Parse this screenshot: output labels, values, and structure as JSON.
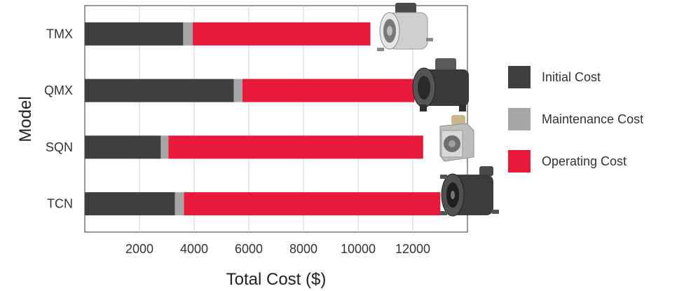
{
  "chart_data": {
    "type": "bar",
    "orientation": "horizontal",
    "stacked": true,
    "categories": [
      "TMX",
      "QMX",
      "SQN",
      "TCN"
    ],
    "series": [
      {
        "name": "Initial Cost",
        "color": "#3f3f3f",
        "values": [
          3600,
          5450,
          2780,
          3300
        ]
      },
      {
        "name": "Maintenance Cost",
        "color": "#a6a6a6",
        "values": [
          350,
          320,
          280,
          330
        ]
      },
      {
        "name": "Operating Cost",
        "color": "#e8193a",
        "values": [
          6500,
          6290,
          9320,
          9380
        ]
      }
    ],
    "xlabel": "Total Cost ($)",
    "ylabel": "Model",
    "xlim": [
      0,
      14000
    ],
    "xticks": [
      2000,
      4000,
      6000,
      8000,
      10000,
      12000
    ],
    "grid": true,
    "legend_position": "right",
    "icons": [
      "tmx-fan-image",
      "qmx-fan-image",
      "sqn-fan-image",
      "tcn-fan-image"
    ]
  }
}
